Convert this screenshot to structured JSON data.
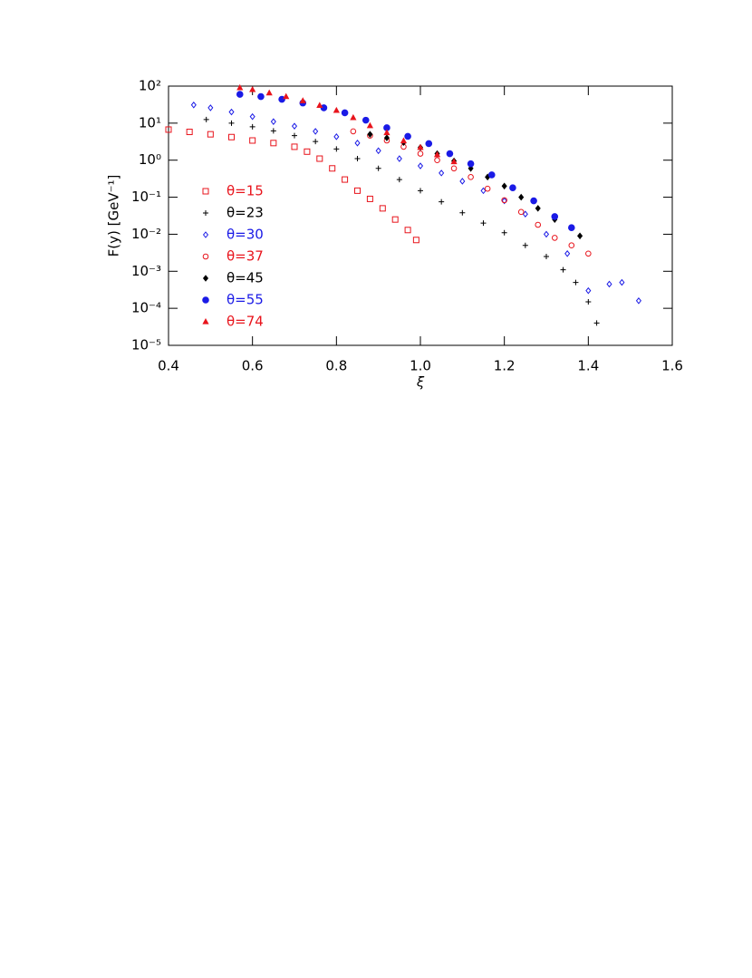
{
  "chart_data": {
    "type": "scatter",
    "xlabel": "ξ",
    "ylabel": "F(y)  [GeV⁻¹]",
    "xlim": [
      0.4,
      1.6
    ],
    "ylim": [
      1e-05,
      100
    ],
    "yscale": "log",
    "xticks": [
      0.4,
      0.6,
      0.8,
      {
        "value": 1,
        "label": "1.0"
      },
      1.2,
      1.4,
      1.6
    ],
    "yticks": [
      {
        "value": 1e-05,
        "label": "10⁻⁵"
      },
      {
        "value": 0.0001,
        "label": "10⁻⁴"
      },
      {
        "value": 0.001,
        "label": "10⁻³"
      },
      {
        "value": 0.01,
        "label": "10⁻²"
      },
      {
        "value": 0.1,
        "label": "10⁻¹"
      },
      {
        "value": 1,
        "label": "10⁰"
      },
      {
        "value": 10,
        "label": "10¹"
      },
      {
        "value": 100,
        "label": "10²"
      }
    ],
    "series": [
      {
        "name": "θ=15",
        "color": "#e8141c",
        "marker": "square-open",
        "x": [
          0.4,
          0.45,
          0.5,
          0.55,
          0.6,
          0.65,
          0.7,
          0.73,
          0.76,
          0.79,
          0.82,
          0.85,
          0.88,
          0.91,
          0.94,
          0.97,
          0.99
        ],
        "values": [
          6.7,
          5.8,
          5.0,
          4.2,
          3.4,
          2.9,
          2.3,
          1.7,
          1.1,
          0.6,
          0.3,
          0.15,
          0.09,
          0.05,
          0.025,
          0.013,
          0.007
        ]
      },
      {
        "name": "θ=23",
        "color": "#000000",
        "marker": "plus",
        "x": [
          0.49,
          0.55,
          0.6,
          0.65,
          0.7,
          0.75,
          0.8,
          0.85,
          0.9,
          0.95,
          1.0,
          1.05,
          1.1,
          1.15,
          1.2,
          1.25,
          1.3,
          1.34,
          1.37,
          1.4,
          1.42
        ],
        "values": [
          12.5,
          10,
          8,
          6.2,
          4.6,
          3.2,
          2.0,
          1.1,
          0.6,
          0.3,
          0.15,
          0.075,
          0.038,
          0.02,
          0.011,
          0.005,
          0.0025,
          0.0011,
          0.0005,
          0.00015,
          4e-05
        ]
      },
      {
        "name": "θ=30",
        "color": "#1a1ae6",
        "marker": "diamond-open",
        "x": [
          0.46,
          0.5,
          0.55,
          0.6,
          0.65,
          0.7,
          0.75,
          0.8,
          0.85,
          0.9,
          0.95,
          1.0,
          1.05,
          1.1,
          1.15,
          1.2,
          1.25,
          1.3,
          1.35,
          1.4,
          1.45,
          1.48,
          1.52
        ],
        "values": [
          31,
          26,
          20,
          15,
          11,
          8.3,
          6,
          4.3,
          2.9,
          1.8,
          1.1,
          0.7,
          0.45,
          0.27,
          0.15,
          0.08,
          0.035,
          0.01,
          0.003,
          0.0003,
          0.00045,
          0.0005,
          0.00016
        ]
      },
      {
        "name": "θ=37",
        "color": "#e8141c",
        "marker": "circle-open",
        "x": [
          0.84,
          0.88,
          0.92,
          0.96,
          1.0,
          1.04,
          1.08,
          1.12,
          1.16,
          1.2,
          1.24,
          1.28,
          1.32,
          1.36,
          1.4
        ],
        "values": [
          6,
          4.6,
          3.4,
          2.3,
          1.5,
          1.0,
          0.6,
          0.35,
          0.17,
          0.083,
          0.04,
          0.018,
          0.008,
          0.005,
          0.003
        ]
      },
      {
        "name": "θ=45",
        "color": "#000000",
        "marker": "diamond",
        "x": [
          0.88,
          0.92,
          0.96,
          1.0,
          1.04,
          1.08,
          1.12,
          1.16,
          1.2,
          1.24,
          1.28,
          1.32,
          1.36,
          1.38
        ],
        "values": [
          5,
          4,
          3,
          2.2,
          1.5,
          0.95,
          0.6,
          0.35,
          0.2,
          0.1,
          0.05,
          0.025,
          0.015,
          0.009
        ]
      },
      {
        "name": "θ=55",
        "color": "#1a1ae6",
        "marker": "circle",
        "x": [
          0.57,
          0.62,
          0.67,
          0.72,
          0.77,
          0.82,
          0.87,
          0.92,
          0.97,
          1.02,
          1.07,
          1.12,
          1.17,
          1.22,
          1.27,
          1.32,
          1.36
        ],
        "values": [
          60,
          52,
          44,
          35,
          26,
          19,
          12,
          7.5,
          4.4,
          2.8,
          1.5,
          0.8,
          0.4,
          0.18,
          0.08,
          0.03,
          0.015
        ]
      },
      {
        "name": "θ=74",
        "color": "#e8141c",
        "marker": "triangle",
        "x": [
          0.57,
          0.6,
          0.64,
          0.68,
          0.72,
          0.76,
          0.8,
          0.84,
          0.88,
          0.92,
          0.96,
          1.0,
          1.04,
          1.08
        ],
        "values": [
          90,
          80,
          65,
          52,
          40,
          30,
          22,
          14,
          8.5,
          5.5,
          3.3,
          2.2,
          1.4,
          0.9
        ]
      }
    ]
  }
}
